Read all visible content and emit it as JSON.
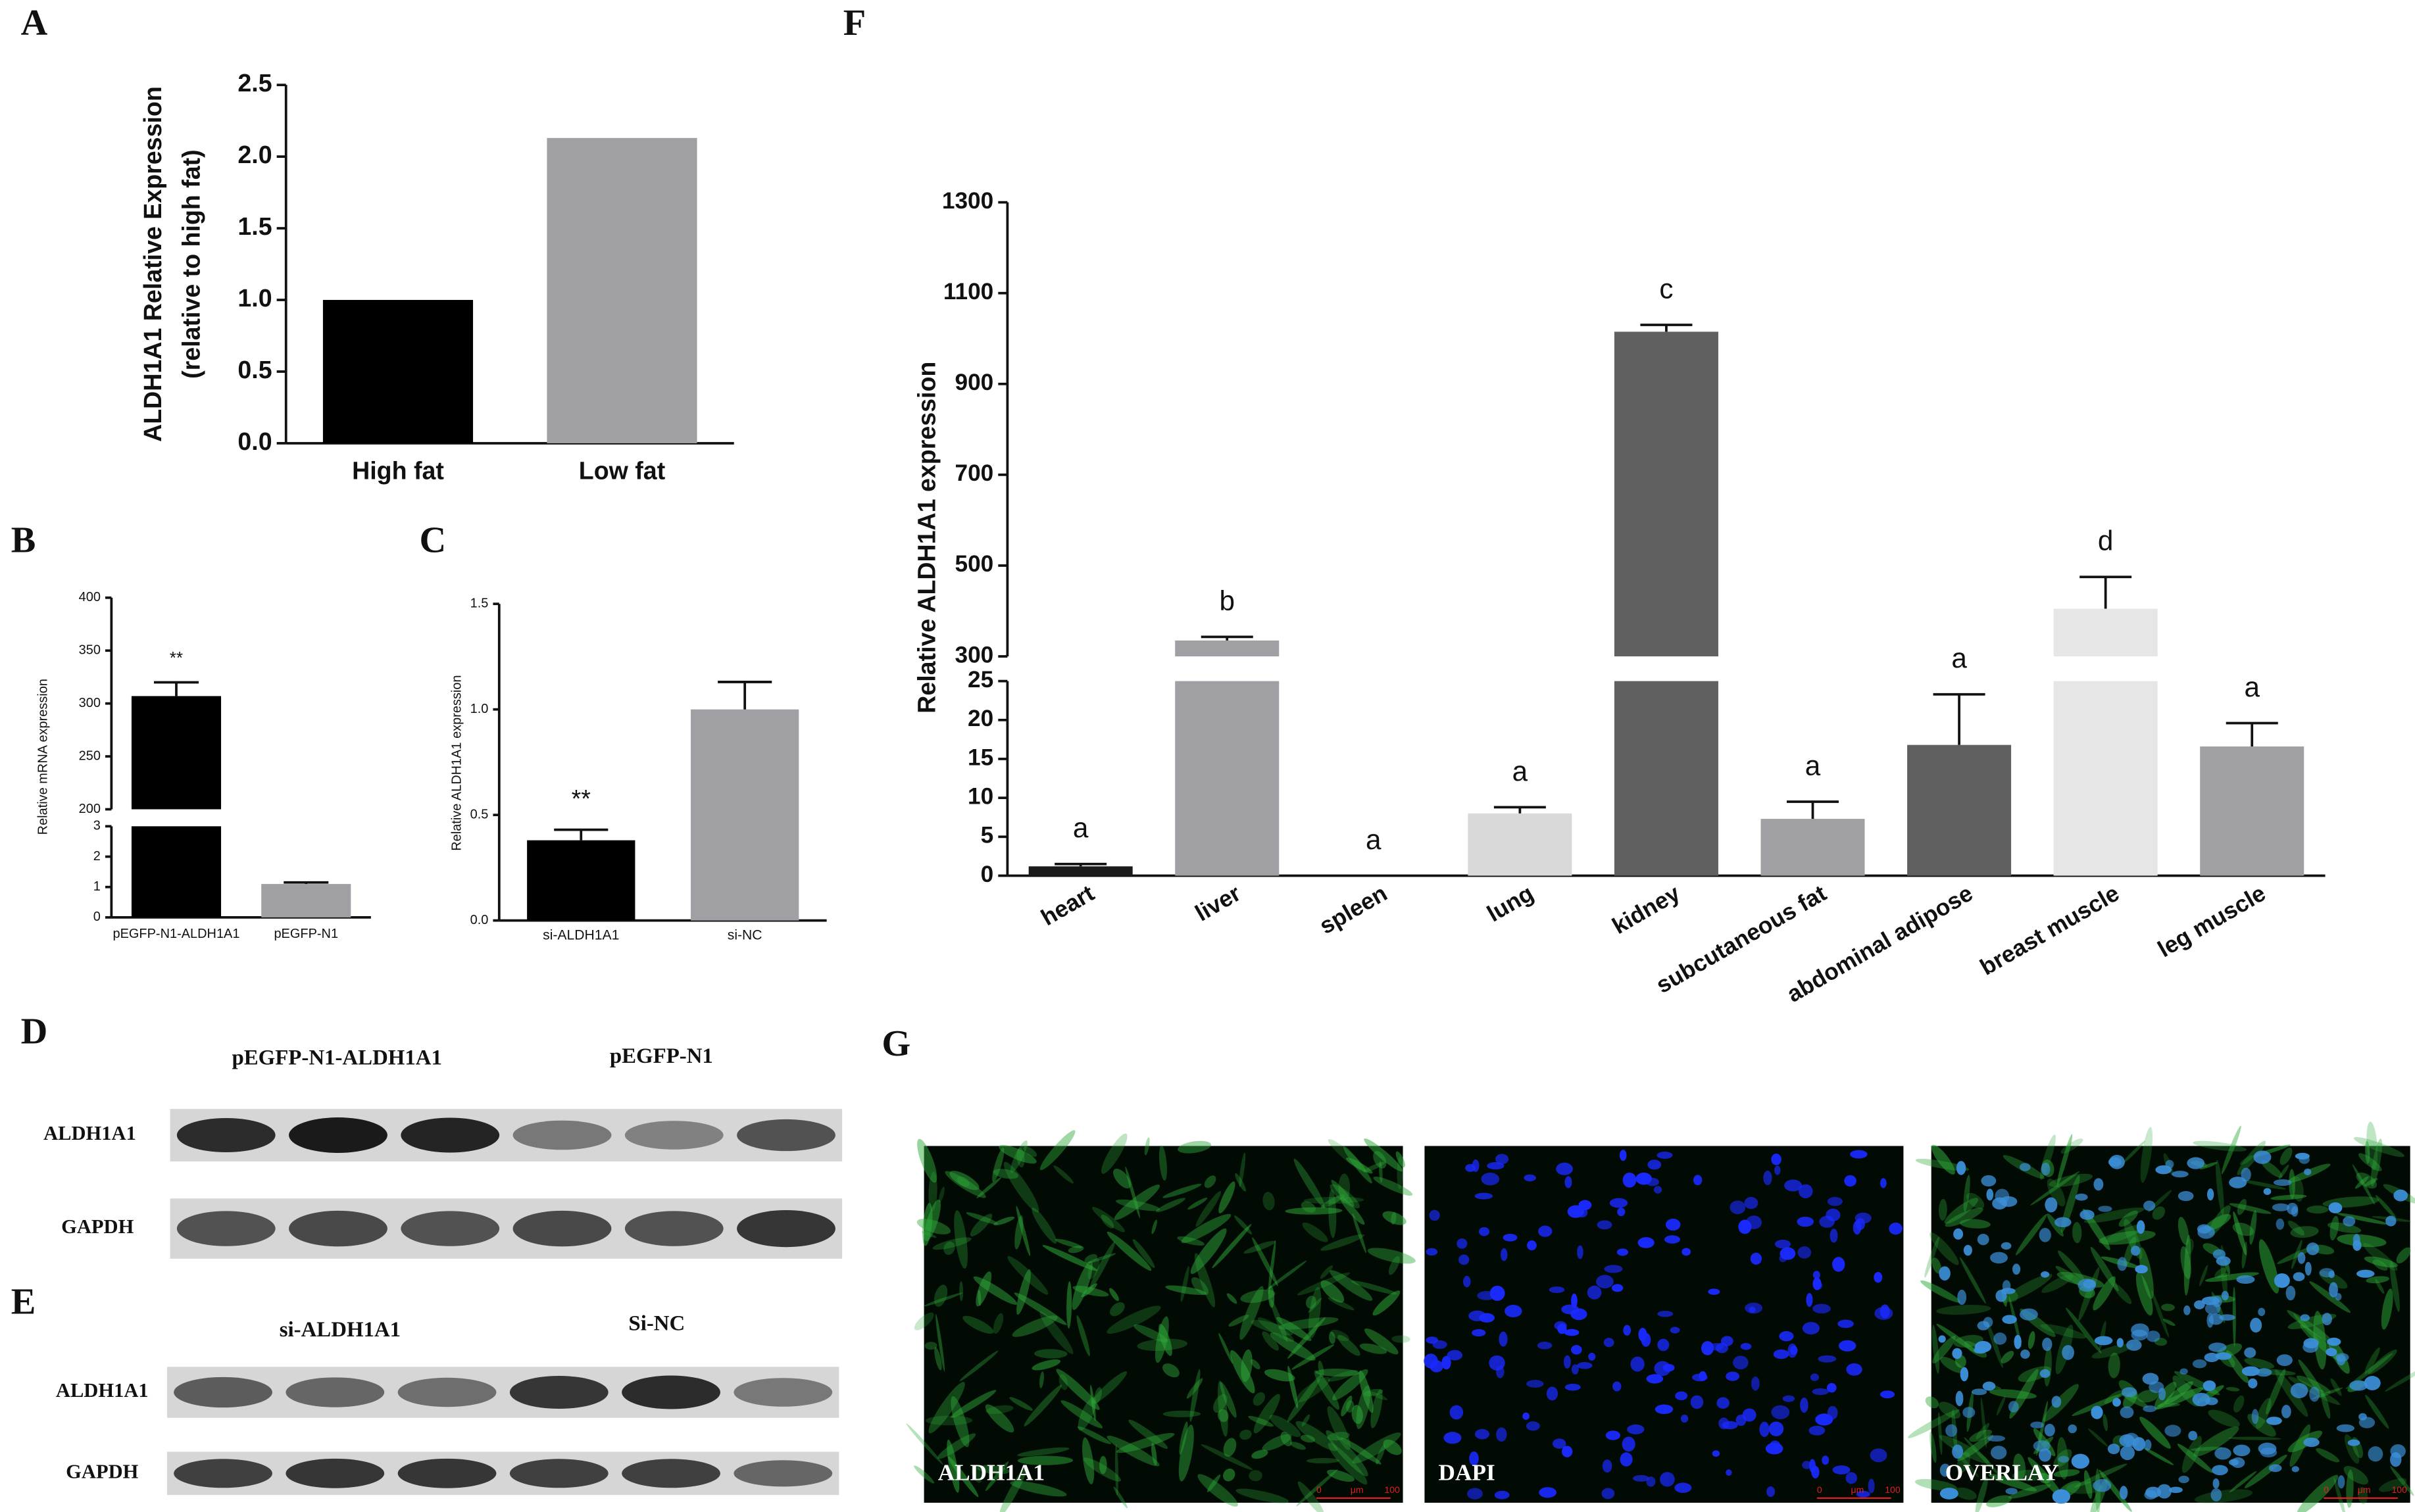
{
  "chart_data": [
    {
      "label": "A",
      "type": "bar",
      "ylabel": [
        "ALDH1A1 Relative Expression",
        "(relative to high fat)"
      ],
      "categories": [
        "High fat",
        "Low fat"
      ],
      "values": [
        1.0,
        2.13
      ],
      "colors": [
        "#000000",
        "#a09fa4"
      ],
      "ylim": [
        0,
        2.5
      ],
      "yticks": [
        {
          "value": 0,
          "label": "0.0"
        },
        {
          "value": 0.5,
          "label": "0.5"
        },
        {
          "value": 1,
          "label": "1.0"
        },
        {
          "value": 1.5,
          "label": "1.5"
        },
        {
          "value": 2,
          "label": "2.0"
        },
        {
          "value": 2.5,
          "label": "2.5"
        }
      ]
    },
    {
      "label": "B",
      "type": "bar",
      "ylabel": "Relative mRNA expression",
      "categories": [
        "pEGFP-N1-ALDH1A1",
        "pEGFP-N1"
      ],
      "values": [
        307,
        1.1
      ],
      "errors": [
        13,
        0.05
      ],
      "value_annotations": [
        "**",
        null
      ],
      "colors": [
        "#000000",
        "#a09fa4"
      ],
      "y_segments": [
        {
          "ylim": [
            0,
            3
          ],
          "yticks": [
            0,
            1,
            2,
            3
          ]
        },
        {
          "ylim": [
            200,
            400
          ],
          "yticks": [
            200,
            250,
            300,
            350,
            400
          ]
        }
      ]
    },
    {
      "label": "C",
      "type": "bar",
      "ylabel": "Relative ALDH1A1 expression",
      "categories": [
        "si-ALDH1A1",
        "si-NC"
      ],
      "values": [
        0.38,
        1.0
      ],
      "errors": [
        0.05,
        0.13
      ],
      "value_annotations": [
        "**",
        null
      ],
      "colors": [
        "#000000",
        "#a09fa4"
      ],
      "ylim": [
        0,
        1.5
      ],
      "yticks": [
        {
          "value": 0,
          "label": "0.0"
        },
        {
          "value": 0.5,
          "label": "0.5"
        },
        {
          "value": 1,
          "label": "1.0"
        },
        {
          "value": 1.5,
          "label": "1.5"
        }
      ]
    },
    {
      "label": "F",
      "type": "bar",
      "ylabel": "Relative ALDH1A1 expression",
      "categories": [
        "heart",
        "liver",
        "spleen",
        "lung",
        "kidney",
        "subcutaneous fat",
        "abdominal adipose",
        "breast muscle",
        "leg muscle"
      ],
      "values": [
        1.2,
        335,
        0,
        8,
        1015,
        7.3,
        16.8,
        405,
        16.6
      ],
      "errors": [
        0.3,
        8,
        0,
        0.8,
        15,
        2.2,
        6.5,
        70,
        3
      ],
      "value_annotations": [
        "a",
        "b",
        "a",
        "a",
        "c",
        "a",
        "a",
        "d",
        "a"
      ],
      "colors": [
        "#1a1a1a",
        "#a09fa4",
        "#a09fa4",
        "#d9d9d9",
        "#606060",
        "#a09fa4",
        "#606060",
        "#e6e6e6",
        "#a09fa4"
      ],
      "y_segments": [
        {
          "ylim": [
            0,
            25
          ],
          "yticks": [
            0,
            5,
            10,
            15,
            20,
            25
          ]
        },
        {
          "ylim": [
            300,
            1300
          ],
          "yticks": [
            300,
            500,
            700,
            900,
            1100,
            1300
          ]
        }
      ]
    }
  ],
  "blots": [
    {
      "label": "D",
      "groups": [
        "pEGFP-N1-ALDH1A1",
        "pEGFP-N1"
      ],
      "rows": [
        "ALDH1A1",
        "GAPDH"
      ]
    },
    {
      "label": "E",
      "groups": [
        "si-ALDH1A1",
        "Si-NC"
      ],
      "rows": [
        "ALDH1A1",
        "GAPDH"
      ]
    }
  ],
  "images": {
    "label": "G",
    "panels": [
      "ALDH1A1",
      "DAPI",
      "OVERLAY"
    ],
    "scale_bar": [
      "0",
      "μm",
      "100"
    ]
  }
}
